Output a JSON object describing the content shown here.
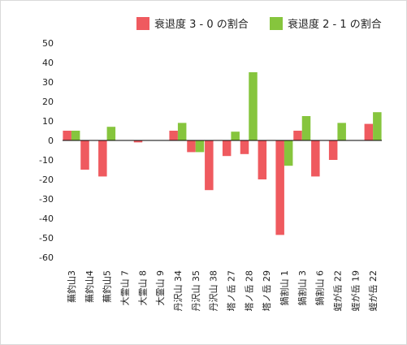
{
  "chart_data": {
    "type": "bar",
    "categories": [
      "蕪釣山3",
      "蕪釣山4",
      "蕪釣山5",
      "大霊山 7",
      "大霊山 8",
      "大霊山 9",
      "丹沢山 34",
      "丹沢山 35",
      "丹沢山 38",
      "塔ノ岳 27",
      "塔ノ岳 28",
      "塔ノ岳 29",
      "鍋割山 1",
      "鍋割山 3",
      "鍋割山 6",
      "蛭が岳 22",
      "蛭が岳 19",
      "蛭が岳 22"
    ],
    "series": [
      {
        "name": "衰退度 3 - 0 の割合",
        "color": "#ef5a5f",
        "values": [
          5,
          -15,
          -18.5,
          0,
          -1,
          0,
          5,
          -6,
          -25.5,
          -8,
          -7,
          -20,
          -48.5,
          5,
          -18.5,
          -10,
          0,
          8.5
        ]
      },
      {
        "name": "衰退度 2 - 1 の割合",
        "color": "#86c53d",
        "values": [
          5,
          0,
          7,
          0,
          0,
          0,
          9,
          -6,
          0,
          4.5,
          35,
          0,
          -13,
          12.5,
          0,
          9,
          0,
          14.5
        ]
      }
    ],
    "yticks": [
      50,
      40,
      30,
      20,
      10,
      0,
      -10,
      -20,
      -30,
      -40,
      -50,
      -60
    ],
    "ylim": [
      -60,
      50
    ],
    "grid": false,
    "legend": "top-right"
  }
}
